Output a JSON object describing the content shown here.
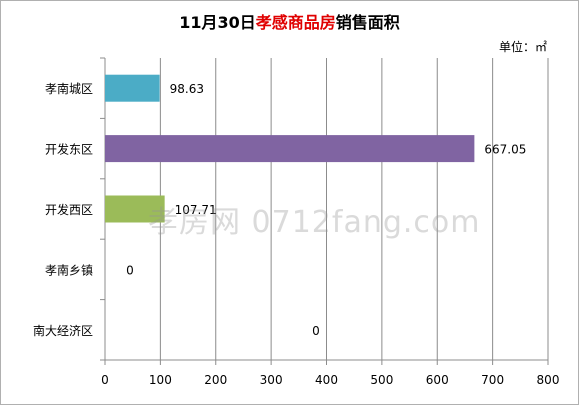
{
  "chart_data": {
    "type": "bar",
    "orientation": "horizontal",
    "title_prefix": "11月30日",
    "title_accent": "孝感商品房",
    "title_suffix": "销售面积",
    "unit": "单位：㎡",
    "categories": [
      "孝南城区",
      "开发东区",
      "开发西区",
      "孝南乡镇",
      "南大经济区"
    ],
    "values": [
      98.63,
      667.05,
      107.71,
      0,
      0
    ],
    "value_labels": [
      "98.63",
      "667.05",
      "107.71",
      "0",
      "0"
    ],
    "bar_colors": [
      "#4bacc6",
      "#8064a2",
      "#9bbb59",
      "#4f81bd",
      "#c0504d"
    ],
    "xlim": [
      0,
      800
    ],
    "xticks": [
      0,
      100,
      200,
      300,
      400,
      500,
      600,
      700,
      800
    ],
    "grid": true,
    "watermark": "孝房网 0712fang.com"
  }
}
